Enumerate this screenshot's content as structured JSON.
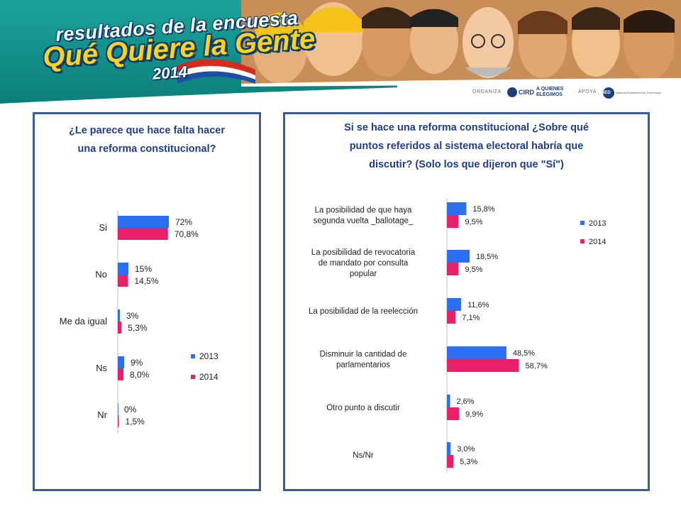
{
  "header": {
    "logo_line1": "resultados de la encuesta",
    "logo_line2": "Qué Quiere la Gente",
    "logo_year": "2014",
    "organiza_label": "ORGANIZA",
    "org1_name": "CIRD",
    "org2_name": "A QUIENES ELEGIMOS",
    "apoya_label": "APOYA",
    "org3_name": "NED",
    "org3_full": "National Endowment for Democracy"
  },
  "colors": {
    "series_2013": "#2c6ff0",
    "series_2014": "#e8206a",
    "title": "#1f3d8a",
    "panel_border": "#3a5f8f"
  },
  "chart_data": [
    {
      "type": "bar",
      "orientation": "horizontal",
      "title": "¿Le parece que hace falta hacer una reforma constitucional?",
      "title_lines": [
        "¿Le parece que hace falta hacer",
        "una reforma constitucional?"
      ],
      "categories": [
        "Si",
        "No",
        "Me da igual",
        "Ns",
        "Nr"
      ],
      "series": [
        {
          "name": "2013",
          "values": [
            72,
            15,
            3,
            9,
            0
          ],
          "labels": [
            "72%",
            "15%",
            "3%",
            "9%",
            "0%"
          ]
        },
        {
          "name": "2014",
          "values": [
            70.8,
            14.5,
            5.3,
            8.0,
            1.5
          ],
          "labels": [
            "70,8%",
            "14,5%",
            "5,3%",
            "8,0%",
            "1,5%"
          ]
        }
      ],
      "legend": "right",
      "grid": false,
      "xlim": [
        0,
        100
      ]
    },
    {
      "type": "bar",
      "orientation": "horizontal",
      "title": "Si se hace una reforma constitucional ¿Sobre qué puntos referidos al sistema electoral habría que discutir? (Solo los que dijeron que \"Sí\")",
      "title_lines": [
        "Si se hace una reforma constitucional ¿Sobre qué",
        "puntos referidos al sistema electoral habría que",
        "discutir? (Solo los que dijeron que \"Sí\")"
      ],
      "categories": [
        "La posibilidad de que haya segunda vuelta _ballotage_",
        "La posibilidad de revocatoria de mandato por consulta popular",
        "La posibilidad de la reelección",
        "Disminuir la cantidad de parlamentarios",
        "Otro punto a discutir",
        "Ns/Nr"
      ],
      "category_lines": [
        [
          "La posibilidad de que haya",
          "segunda vuelta _ballotage_"
        ],
        [
          "La posibilidad de revocatoria",
          "de mandato por consulta",
          "popular"
        ],
        [
          "La posibilidad de la reelección"
        ],
        [
          "Disminuir la cantidad de",
          "parlamentarios"
        ],
        [
          "Otro punto a discutir"
        ],
        [
          "Ns/Nr"
        ]
      ],
      "series": [
        {
          "name": "2013",
          "values": [
            15.8,
            18.5,
            11.6,
            48.5,
            2.6,
            3.0
          ],
          "labels": [
            "15,8%",
            "18,5%",
            "11,6%",
            "48,5%",
            "2,6%",
            "3,0%"
          ]
        },
        {
          "name": "2014",
          "values": [
            9.5,
            9.5,
            7.1,
            58.7,
            9.9,
            5.3
          ],
          "labels": [
            "9,5%",
            "9,5%",
            "7,1%",
            "58,7%",
            "9,9%",
            "5,3%"
          ]
        }
      ],
      "legend": "top-right",
      "grid": false,
      "xlim": [
        0,
        100
      ]
    }
  ]
}
